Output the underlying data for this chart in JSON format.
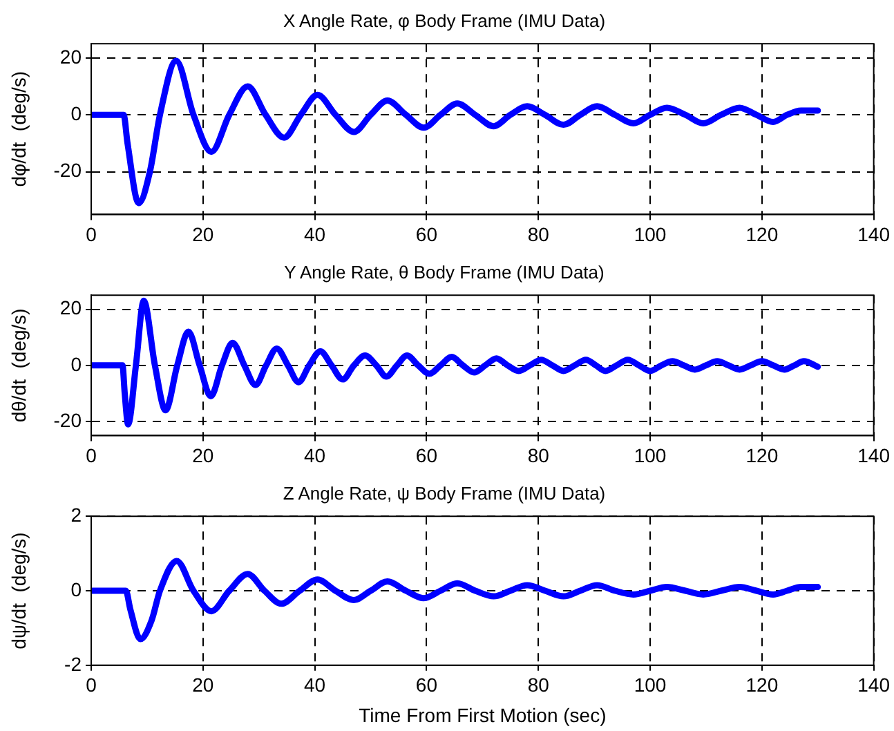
{
  "chart_data": [
    {
      "type": "line",
      "title": "X Angle Rate, φ Body Frame (IMU Data)",
      "ylabel": "dφ/dt  (deg/s)",
      "xlim": [
        0,
        140
      ],
      "xticks": [
        0,
        20,
        40,
        60,
        80,
        100,
        120,
        140
      ],
      "ylim": [
        -35,
        25
      ],
      "yticks": [
        -20,
        0,
        20
      ],
      "grid": true,
      "line_style": "solid",
      "series": [
        {
          "color": "#0000ff",
          "x": [
            0,
            5.8,
            6.5,
            8.5,
            10.5,
            12.3,
            15.2,
            18.3,
            21.5,
            24.7,
            28,
            31.2,
            34.5,
            37.5,
            40.5,
            43.7,
            47,
            50,
            53,
            56.3,
            59.5,
            62.5,
            65.5,
            68.7,
            72,
            75,
            78,
            81.2,
            84.5,
            87.5,
            90.5,
            93.7,
            97,
            100,
            103,
            106.3,
            109.5,
            112.7,
            116,
            119,
            122,
            124.5,
            127,
            130
          ],
          "values": [
            0,
            0,
            -10,
            -31,
            -20,
            0,
            19,
            0,
            -13,
            0,
            10,
            0,
            -8,
            0,
            7,
            0,
            -6,
            0,
            5,
            0,
            -4.5,
            0,
            4,
            0,
            -4,
            0,
            3,
            0,
            -3.5,
            0,
            3,
            0,
            -3,
            0,
            2.5,
            0,
            -3,
            0,
            2.5,
            0,
            -2.5,
            0,
            1.5,
            1.5
          ]
        }
      ]
    },
    {
      "type": "line",
      "title": "Y Angle Rate, θ Body Frame (IMU Data)",
      "ylabel": "dθ/dt  (deg/s)",
      "xlim": [
        0,
        140
      ],
      "xticks": [
        0,
        20,
        40,
        60,
        80,
        100,
        120,
        140
      ],
      "ylim": [
        -25,
        25
      ],
      "yticks": [
        -20,
        0,
        20
      ],
      "grid": true,
      "line_style": "solid",
      "series": [
        {
          "color": "#0000ff",
          "x": [
            0,
            5.6,
            6.0,
            6.6,
            8.0,
            9.4,
            11.4,
            13.3,
            15.4,
            17.4,
            19.4,
            21.4,
            23.4,
            25.3,
            27.4,
            29.4,
            31.3,
            33.2,
            35.2,
            37.1,
            39,
            41,
            43,
            45,
            47,
            49,
            51,
            52.8,
            54.7,
            56.5,
            58.5,
            60.5,
            62.5,
            64.5,
            66.5,
            68.5,
            70.5,
            72.5,
            74.5,
            76.5,
            78.5,
            80.5,
            82.5,
            84.5,
            86.5,
            88.5,
            90.3,
            92,
            94,
            96,
            98,
            100,
            102,
            104,
            106,
            108,
            110,
            112,
            114,
            116,
            118,
            120,
            122,
            124,
            125.8,
            127.5,
            130
          ],
          "values": [
            0,
            0,
            -10,
            -21,
            0,
            23,
            0,
            -16,
            0,
            12,
            0,
            -11,
            0,
            8,
            0,
            -7,
            0,
            6,
            0,
            -6,
            0,
            5,
            0,
            -5,
            0,
            3.5,
            0,
            -4,
            0,
            3.5,
            0,
            -3,
            0,
            3,
            0,
            -2.5,
            0,
            2.5,
            0,
            -2,
            0,
            2,
            0,
            -2,
            0,
            2,
            0,
            -2,
            0,
            2,
            0,
            -2,
            0,
            1.5,
            0,
            -1.5,
            0,
            1.5,
            0,
            -1.5,
            0,
            1.5,
            0,
            -1.5,
            0,
            1.5,
            -0.5
          ]
        }
      ]
    },
    {
      "type": "line",
      "title": "Z Angle Rate, ψ Body Frame (IMU Data)",
      "xlabel": "Time From First Motion (sec)",
      "ylabel": "dψ/dt  (deg/s)",
      "xlim": [
        0,
        140
      ],
      "xticks": [
        0,
        20,
        40,
        60,
        80,
        100,
        120,
        140
      ],
      "ylim": [
        -2,
        2
      ],
      "yticks": [
        -2,
        0,
        2
      ],
      "grid": true,
      "line_style": "solid",
      "series": [
        {
          "color": "#0000ff",
          "x": [
            0,
            6.2,
            7.0,
            8.8,
            10.8,
            12.3,
            15.3,
            18.3,
            21.5,
            24.7,
            28,
            31,
            34,
            37.3,
            40.5,
            43.7,
            47,
            50,
            53,
            56.3,
            59.5,
            62.5,
            65.5,
            68.7,
            72,
            75,
            78,
            81.2,
            84.5,
            87.5,
            90.5,
            93.7,
            97,
            100,
            103,
            106.3,
            109.5,
            112.7,
            116,
            119,
            122,
            124.5,
            127,
            130
          ],
          "values": [
            0,
            0,
            -0.5,
            -1.3,
            -0.8,
            0,
            0.8,
            0,
            -0.55,
            0,
            0.45,
            0,
            -0.35,
            0,
            0.3,
            0,
            -0.25,
            0,
            0.25,
            0,
            -0.2,
            0,
            0.2,
            0,
            -0.15,
            0,
            0.15,
            0,
            -0.15,
            0,
            0.15,
            0,
            -0.1,
            0,
            0.1,
            0,
            -0.1,
            0,
            0.1,
            0,
            -0.1,
            0,
            0.1,
            0.1
          ]
        }
      ]
    }
  ]
}
